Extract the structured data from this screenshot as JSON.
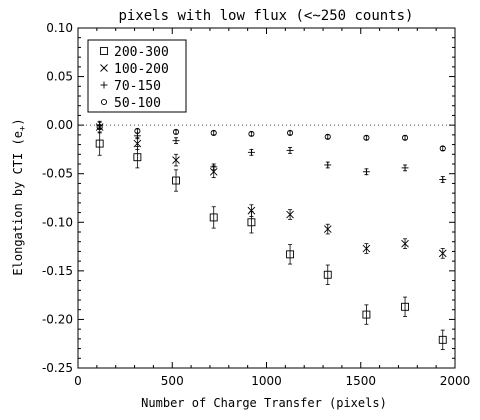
{
  "chart_data": {
    "type": "scatter",
    "title": "pixels with low flux (<~250 counts)",
    "xlabel": "Number of Charge Transfer (pixels)",
    "ylabel_main": "Elongation by CTI (e",
    "ylabel_sub": "+",
    "ylabel_end": ")",
    "xlim": [
      0,
      2000
    ],
    "ylim": [
      -0.25,
      0.1
    ],
    "xticks": [
      0,
      500,
      1000,
      1500,
      2000
    ],
    "yticks": [
      0.1,
      0.05,
      0.0,
      -0.05,
      -0.1,
      -0.15,
      -0.2,
      -0.25
    ],
    "xtick_labels": [
      "0",
      "500",
      "1000",
      "1500",
      "2000"
    ],
    "ytick_labels": [
      "0.10",
      "0.05",
      "0.00",
      "-0.05",
      "-0.10",
      "-0.15",
      "-0.20",
      "-0.25"
    ],
    "reference_line_y": 0.0,
    "legend_position": "top-left",
    "series": [
      {
        "name": "200-300",
        "marker": "square",
        "points": [
          {
            "x": 115,
            "y": -0.019,
            "err": 0.012
          },
          {
            "x": 315,
            "y": -0.033,
            "err": 0.011
          },
          {
            "x": 520,
            "y": -0.057,
            "err": 0.011
          },
          {
            "x": 720,
            "y": -0.095,
            "err": 0.011
          },
          {
            "x": 920,
            "y": -0.1,
            "err": 0.011
          },
          {
            "x": 1125,
            "y": -0.133,
            "err": 0.01
          },
          {
            "x": 1325,
            "y": -0.154,
            "err": 0.01
          },
          {
            "x": 1530,
            "y": -0.195,
            "err": 0.01
          },
          {
            "x": 1735,
            "y": -0.187,
            "err": 0.01
          },
          {
            "x": 1935,
            "y": -0.221,
            "err": 0.01
          }
        ]
      },
      {
        "name": "100-200",
        "marker": "x",
        "points": [
          {
            "x": 115,
            "y": -0.002,
            "err": 0.006
          },
          {
            "x": 315,
            "y": -0.019,
            "err": 0.006
          },
          {
            "x": 520,
            "y": -0.036,
            "err": 0.006
          },
          {
            "x": 720,
            "y": -0.048,
            "err": 0.006
          },
          {
            "x": 920,
            "y": -0.088,
            "err": 0.006
          },
          {
            "x": 1125,
            "y": -0.092,
            "err": 0.005
          },
          {
            "x": 1325,
            "y": -0.107,
            "err": 0.005
          },
          {
            "x": 1530,
            "y": -0.127,
            "err": 0.005
          },
          {
            "x": 1735,
            "y": -0.122,
            "err": 0.005
          },
          {
            "x": 1935,
            "y": -0.132,
            "err": 0.005
          }
        ]
      },
      {
        "name": "70-150",
        "marker": "plus",
        "points": [
          {
            "x": 115,
            "y": 0.0,
            "err": 0.003
          },
          {
            "x": 315,
            "y": -0.011,
            "err": 0.003
          },
          {
            "x": 520,
            "y": -0.016,
            "err": 0.003
          },
          {
            "x": 720,
            "y": -0.043,
            "err": 0.003
          },
          {
            "x": 920,
            "y": -0.028,
            "err": 0.003
          },
          {
            "x": 1125,
            "y": -0.026,
            "err": 0.003
          },
          {
            "x": 1325,
            "y": -0.041,
            "err": 0.003
          },
          {
            "x": 1530,
            "y": -0.048,
            "err": 0.003
          },
          {
            "x": 1735,
            "y": -0.044,
            "err": 0.003
          },
          {
            "x": 1935,
            "y": -0.056,
            "err": 0.003
          }
        ]
      },
      {
        "name": "50-100",
        "marker": "circle",
        "points": [
          {
            "x": 115,
            "y": -0.002,
            "err": 0.002
          },
          {
            "x": 315,
            "y": -0.006,
            "err": 0.002
          },
          {
            "x": 520,
            "y": -0.007,
            "err": 0.002
          },
          {
            "x": 720,
            "y": -0.008,
            "err": 0.002
          },
          {
            "x": 920,
            "y": -0.009,
            "err": 0.002
          },
          {
            "x": 1125,
            "y": -0.008,
            "err": 0.002
          },
          {
            "x": 1325,
            "y": -0.012,
            "err": 0.002
          },
          {
            "x": 1530,
            "y": -0.013,
            "err": 0.002
          },
          {
            "x": 1735,
            "y": -0.013,
            "err": 0.002
          },
          {
            "x": 1935,
            "y": -0.024,
            "err": 0.002
          }
        ]
      }
    ]
  }
}
